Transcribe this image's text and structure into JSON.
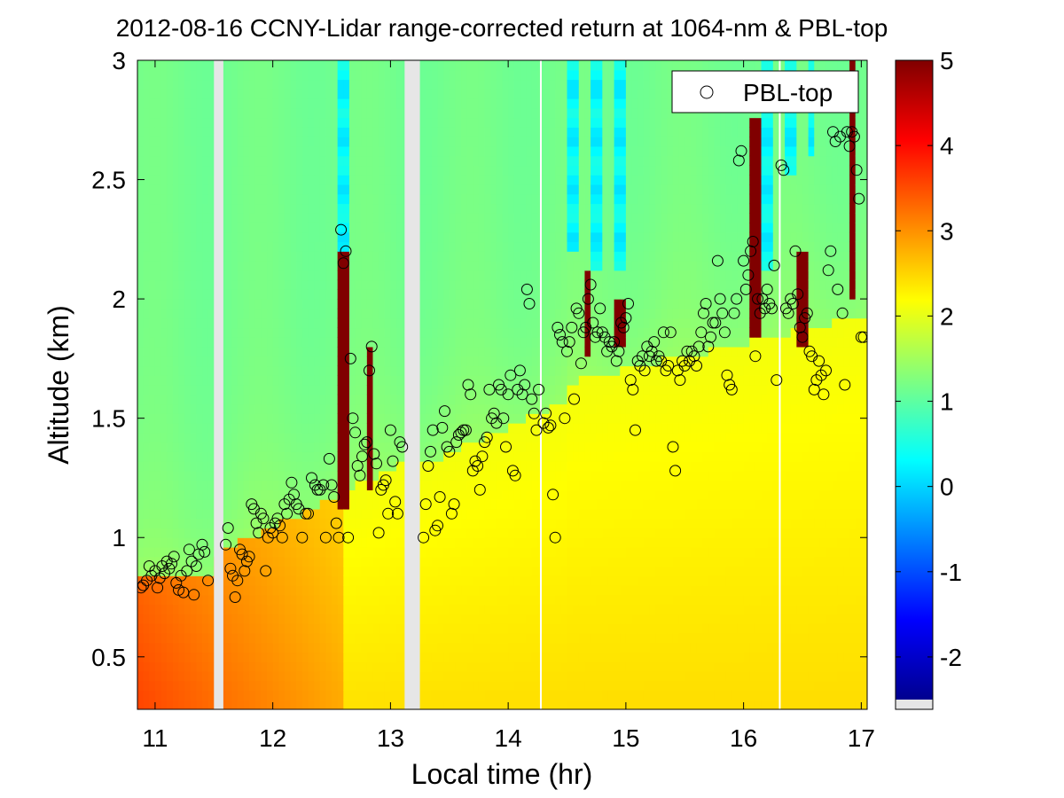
{
  "chart_data": {
    "type": "heatmap",
    "title": "2012-08-16 CCNY-Lidar range-corrected return at 1064-nm & PBL-top",
    "xlabel": "Local time (hr)",
    "ylabel": "Altitude (km)",
    "xlim": [
      10.85,
      17.05
    ],
    "ylim": [
      0.28,
      3.0
    ],
    "xticks": [
      11,
      12,
      13,
      14,
      15,
      16,
      17
    ],
    "xtick_labels": [
      "11",
      "12",
      "13",
      "14",
      "15",
      "16",
      "17"
    ],
    "yticks": [
      0.5,
      1,
      1.5,
      2,
      2.5,
      3
    ],
    "ytick_labels": [
      "0.5",
      "1",
      "1.5",
      "2",
      "2.5",
      "3"
    ],
    "colorbar": {
      "min": -2.5,
      "max": 5,
      "ticks": [
        -2,
        -1,
        0,
        1,
        2,
        3,
        4,
        5
      ],
      "tick_labels": [
        "-2",
        "-1",
        "0",
        "1",
        "2",
        "3",
        "4",
        "5"
      ],
      "colormap": "jet"
    },
    "legend": {
      "label": "PBL-top",
      "marker": "open-circle",
      "location": "top-right"
    },
    "data_gaps_hr": [
      [
        11.5,
        11.58
      ],
      [
        13.12,
        13.25
      ],
      [
        14.27,
        14.28
      ],
      [
        16.3,
        16.31
      ]
    ],
    "pbl_top_points": [
      [
        10.88,
        0.79
      ],
      [
        10.9,
        0.8
      ],
      [
        10.93,
        0.82
      ],
      [
        10.95,
        0.88
      ],
      [
        10.97,
        0.84
      ],
      [
        11.0,
        0.86
      ],
      [
        11.02,
        0.79
      ],
      [
        11.04,
        0.83
      ],
      [
        11.06,
        0.88
      ],
      [
        11.08,
        0.85
      ],
      [
        11.1,
        0.9
      ],
      [
        11.12,
        0.87
      ],
      [
        11.14,
        0.89
      ],
      [
        11.16,
        0.92
      ],
      [
        11.18,
        0.81
      ],
      [
        11.2,
        0.78
      ],
      [
        11.22,
        0.84
      ],
      [
        11.24,
        0.77
      ],
      [
        11.27,
        0.86
      ],
      [
        11.29,
        0.95
      ],
      [
        11.31,
        0.9
      ],
      [
        11.33,
        0.76
      ],
      [
        11.35,
        0.88
      ],
      [
        11.37,
        0.93
      ],
      [
        11.4,
        0.97
      ],
      [
        11.42,
        0.94
      ],
      [
        11.45,
        0.82
      ],
      [
        11.6,
        0.97
      ],
      [
        11.62,
        1.04
      ],
      [
        11.64,
        0.87
      ],
      [
        11.66,
        0.84
      ],
      [
        11.68,
        0.75
      ],
      [
        11.7,
        0.82
      ],
      [
        11.72,
        0.95
      ],
      [
        11.74,
        0.93
      ],
      [
        11.76,
        0.86
      ],
      [
        11.78,
        0.9
      ],
      [
        11.8,
        0.92
      ],
      [
        11.82,
        1.14
      ],
      [
        11.84,
        1.12
      ],
      [
        11.86,
        1.06
      ],
      [
        11.88,
        1.02
      ],
      [
        11.9,
        1.1
      ],
      [
        11.92,
        1.08
      ],
      [
        11.94,
        0.86
      ],
      [
        11.96,
        1.0
      ],
      [
        11.98,
        1.04
      ],
      [
        12.0,
        1.02
      ],
      [
        12.02,
        1.06
      ],
      [
        12.04,
        1.08
      ],
      [
        12.06,
        1.05
      ],
      [
        12.08,
        1.0
      ],
      [
        12.1,
        1.14
      ],
      [
        12.12,
        1.1
      ],
      [
        12.14,
        1.16
      ],
      [
        12.16,
        1.23
      ],
      [
        12.18,
        1.18
      ],
      [
        12.2,
        1.14
      ],
      [
        12.22,
        1.12
      ],
      [
        12.25,
        1.0
      ],
      [
        12.28,
        1.1
      ],
      [
        12.3,
        1.1
      ],
      [
        12.33,
        1.25
      ],
      [
        12.36,
        1.22
      ],
      [
        12.38,
        1.2
      ],
      [
        12.4,
        1.2
      ],
      [
        12.43,
        1.22
      ],
      [
        12.45,
        1.0
      ],
      [
        12.48,
        1.33
      ],
      [
        12.5,
        1.22
      ],
      [
        12.52,
        1.17
      ],
      [
        12.54,
        1.06
      ],
      [
        12.56,
        1.0
      ],
      [
        12.58,
        2.29
      ],
      [
        12.6,
        2.15
      ],
      [
        12.62,
        2.2
      ],
      [
        12.64,
        1.0
      ],
      [
        12.66,
        1.75
      ],
      [
        12.68,
        1.5
      ],
      [
        12.7,
        1.44
      ],
      [
        12.72,
        1.3
      ],
      [
        12.74,
        1.26
      ],
      [
        12.76,
        1.34
      ],
      [
        12.78,
        1.39
      ],
      [
        12.8,
        1.4
      ],
      [
        12.82,
        1.7
      ],
      [
        12.84,
        1.8
      ],
      [
        12.86,
        1.35
      ],
      [
        12.88,
        1.31
      ],
      [
        12.9,
        1.02
      ],
      [
        12.92,
        1.2
      ],
      [
        12.94,
        1.22
      ],
      [
        12.96,
        1.24
      ],
      [
        12.98,
        1.1
      ],
      [
        13.0,
        1.45
      ],
      [
        13.02,
        1.32
      ],
      [
        13.04,
        1.15
      ],
      [
        13.06,
        1.1
      ],
      [
        13.08,
        1.4
      ],
      [
        13.1,
        1.38
      ],
      [
        13.28,
        1.0
      ],
      [
        13.3,
        1.14
      ],
      [
        13.32,
        1.3
      ],
      [
        13.34,
        1.36
      ],
      [
        13.36,
        1.45
      ],
      [
        13.38,
        1.03
      ],
      [
        13.4,
        1.05
      ],
      [
        13.42,
        1.17
      ],
      [
        13.44,
        1.46
      ],
      [
        13.46,
        1.53
      ],
      [
        13.48,
        1.38
      ],
      [
        13.5,
        1.36
      ],
      [
        13.52,
        1.1
      ],
      [
        13.54,
        1.14
      ],
      [
        13.56,
        1.4
      ],
      [
        13.58,
        1.43
      ],
      [
        13.6,
        1.44
      ],
      [
        13.62,
        1.45
      ],
      [
        13.64,
        1.45
      ],
      [
        13.66,
        1.64
      ],
      [
        13.68,
        1.6
      ],
      [
        13.7,
        1.28
      ],
      [
        13.72,
        1.32
      ],
      [
        13.74,
        1.3
      ],
      [
        13.76,
        1.2
      ],
      [
        13.78,
        1.34
      ],
      [
        13.8,
        1.4
      ],
      [
        13.82,
        1.42
      ],
      [
        13.84,
        1.62
      ],
      [
        13.86,
        1.5
      ],
      [
        13.88,
        1.52
      ],
      [
        13.9,
        1.48
      ],
      [
        13.92,
        1.64
      ],
      [
        13.94,
        1.62
      ],
      [
        13.96,
        1.5
      ],
      [
        13.98,
        1.38
      ],
      [
        14.0,
        1.6
      ],
      [
        14.02,
        1.68
      ],
      [
        14.04,
        1.28
      ],
      [
        14.06,
        1.26
      ],
      [
        14.08,
        1.62
      ],
      [
        14.1,
        1.7
      ],
      [
        14.12,
        1.6
      ],
      [
        14.14,
        1.64
      ],
      [
        14.16,
        2.04
      ],
      [
        14.18,
        1.98
      ],
      [
        14.2,
        1.58
      ],
      [
        14.22,
        1.52
      ],
      [
        14.24,
        1.45
      ],
      [
        14.26,
        1.62
      ],
      [
        14.3,
        1.48
      ],
      [
        14.32,
        1.52
      ],
      [
        14.34,
        1.46
      ],
      [
        14.36,
        1.47
      ],
      [
        14.38,
        1.18
      ],
      [
        14.4,
        1.0
      ],
      [
        14.42,
        1.88
      ],
      [
        14.44,
        1.85
      ],
      [
        14.46,
        1.82
      ],
      [
        14.48,
        1.5
      ],
      [
        14.5,
        1.78
      ],
      [
        14.52,
        1.82
      ],
      [
        14.54,
        1.88
      ],
      [
        14.56,
        1.58
      ],
      [
        14.58,
        1.96
      ],
      [
        14.6,
        1.94
      ],
      [
        14.62,
        1.73
      ],
      [
        14.64,
        1.86
      ],
      [
        14.66,
        1.88
      ],
      [
        14.68,
        2.0
      ],
      [
        14.7,
        2.06
      ],
      [
        14.72,
        1.9
      ],
      [
        14.74,
        1.84
      ],
      [
        14.76,
        1.86
      ],
      [
        14.78,
        1.96
      ],
      [
        14.8,
        1.86
      ],
      [
        14.82,
        1.84
      ],
      [
        14.84,
        1.78
      ],
      [
        14.86,
        1.82
      ],
      [
        14.88,
        1.8
      ],
      [
        14.9,
        1.82
      ],
      [
        14.92,
        1.74
      ],
      [
        14.94,
        1.78
      ],
      [
        14.96,
        1.9
      ],
      [
        14.98,
        1.88
      ],
      [
        15.0,
        1.92
      ],
      [
        15.02,
        1.98
      ],
      [
        15.04,
        1.66
      ],
      [
        15.06,
        1.62
      ],
      [
        15.08,
        1.45
      ],
      [
        15.1,
        1.74
      ],
      [
        15.12,
        1.72
      ],
      [
        15.14,
        1.76
      ],
      [
        15.16,
        1.7
      ],
      [
        15.18,
        1.8
      ],
      [
        15.2,
        1.76
      ],
      [
        15.22,
        1.78
      ],
      [
        15.24,
        1.82
      ],
      [
        15.26,
        1.74
      ],
      [
        15.28,
        1.76
      ],
      [
        15.3,
        1.74
      ],
      [
        15.32,
        1.86
      ],
      [
        15.34,
        1.7
      ],
      [
        15.36,
        1.72
      ],
      [
        15.38,
        1.86
      ],
      [
        15.4,
        1.38
      ],
      [
        15.42,
        1.28
      ],
      [
        15.44,
        1.7
      ],
      [
        15.46,
        1.66
      ],
      [
        15.48,
        1.74
      ],
      [
        15.5,
        1.72
      ],
      [
        15.52,
        1.78
      ],
      [
        15.54,
        1.74
      ],
      [
        15.56,
        1.78
      ],
      [
        15.58,
        1.76
      ],
      [
        15.6,
        1.72
      ],
      [
        15.62,
        1.8
      ],
      [
        15.64,
        1.86
      ],
      [
        15.66,
        1.94
      ],
      [
        15.68,
        1.98
      ],
      [
        15.7,
        1.8
      ],
      [
        15.72,
        1.84
      ],
      [
        15.74,
        1.9
      ],
      [
        15.76,
        1.9
      ],
      [
        15.78,
        2.16
      ],
      [
        15.8,
        2.0
      ],
      [
        15.82,
        1.94
      ],
      [
        15.84,
        1.86
      ],
      [
        15.86,
        1.68
      ],
      [
        15.88,
        1.64
      ],
      [
        15.9,
        1.62
      ],
      [
        15.92,
        1.94
      ],
      [
        15.94,
        2.0
      ],
      [
        15.96,
        2.58
      ],
      [
        15.98,
        2.62
      ],
      [
        16.0,
        2.16
      ],
      [
        16.02,
        2.04
      ],
      [
        16.04,
        2.1
      ],
      [
        16.06,
        2.2
      ],
      [
        16.08,
        2.24
      ],
      [
        16.1,
        1.76
      ],
      [
        16.12,
        2.0
      ],
      [
        16.14,
        1.94
      ],
      [
        16.16,
        2.0
      ],
      [
        16.18,
        1.96
      ],
      [
        16.2,
        2.04
      ],
      [
        16.22,
        1.98
      ],
      [
        16.24,
        1.96
      ],
      [
        16.26,
        2.14
      ],
      [
        16.28,
        1.66
      ],
      [
        16.32,
        2.56
      ],
      [
        16.34,
        2.54
      ],
      [
        16.36,
        1.96
      ],
      [
        16.38,
        1.94
      ],
      [
        16.4,
        2.0
      ],
      [
        16.42,
        1.98
      ],
      [
        16.44,
        2.2
      ],
      [
        16.46,
        2.02
      ],
      [
        16.48,
        1.88
      ],
      [
        16.5,
        1.84
      ],
      [
        16.52,
        1.92
      ],
      [
        16.54,
        1.94
      ],
      [
        16.56,
        1.78
      ],
      [
        16.58,
        1.76
      ],
      [
        16.6,
        1.62
      ],
      [
        16.62,
        1.66
      ],
      [
        16.64,
        1.74
      ],
      [
        16.66,
        1.68
      ],
      [
        16.68,
        1.6
      ],
      [
        16.7,
        1.7
      ],
      [
        16.72,
        2.12
      ],
      [
        16.74,
        2.2
      ],
      [
        16.76,
        2.7
      ],
      [
        16.78,
        2.66
      ],
      [
        16.8,
        2.04
      ],
      [
        16.82,
        2.68
      ],
      [
        16.84,
        1.94
      ],
      [
        16.86,
        1.64
      ],
      [
        16.88,
        2.7
      ],
      [
        16.9,
        2.64
      ],
      [
        16.92,
        2.7
      ],
      [
        16.94,
        2.68
      ],
      [
        16.96,
        2.54
      ],
      [
        16.98,
        2.42
      ],
      [
        17.0,
        1.84
      ],
      [
        17.02,
        1.84
      ]
    ]
  }
}
